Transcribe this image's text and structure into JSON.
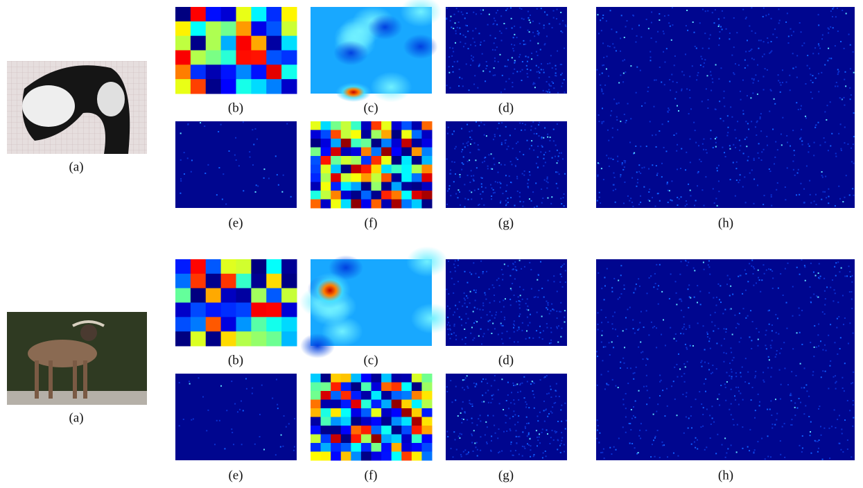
{
  "rows": [
    {
      "a": "(a)",
      "b": "(b)",
      "c": "(c)",
      "d": "(d)",
      "e": "(e)",
      "f": "(f)",
      "g": "(g)",
      "h": "(h)"
    },
    {
      "a": "(a)",
      "b": "(b)",
      "c": "(c)",
      "d": "(d)",
      "e": "(e)",
      "f": "(f)",
      "g": "(g)",
      "h": "(h)"
    }
  ]
}
